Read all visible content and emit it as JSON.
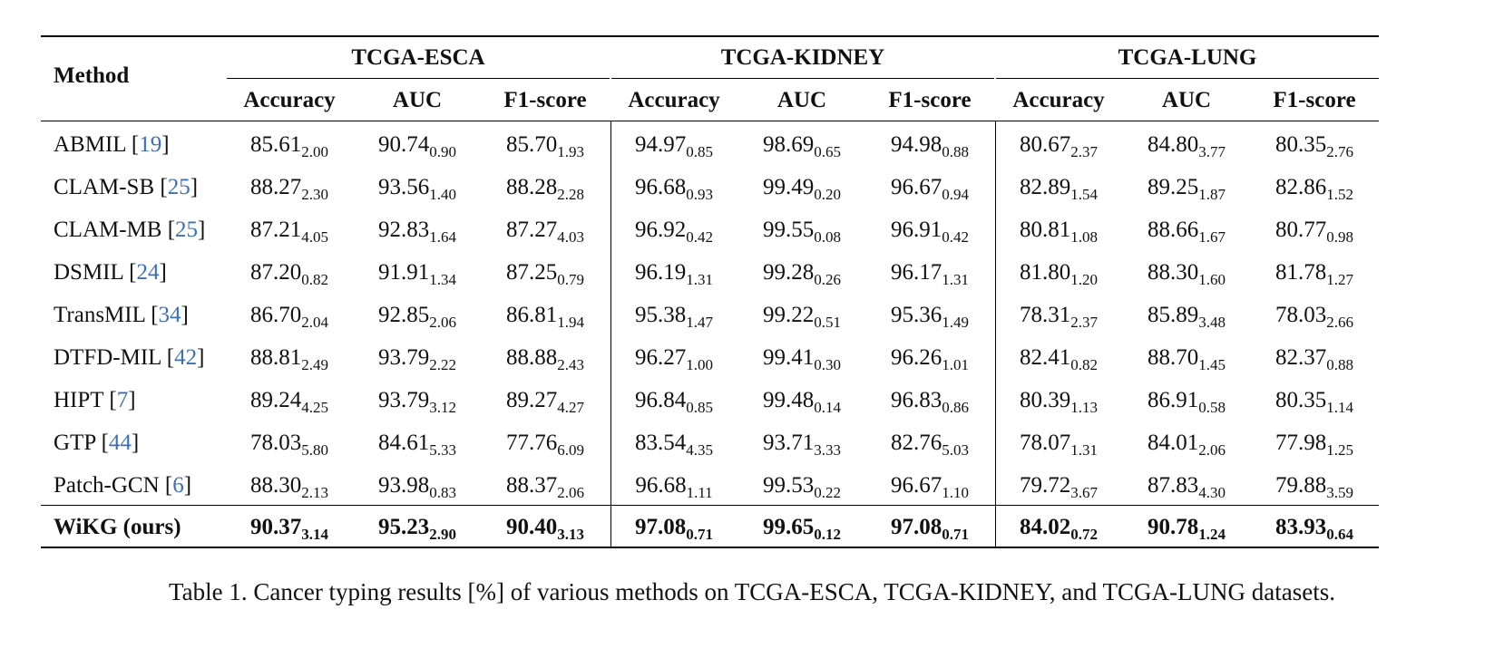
{
  "header": {
    "method_label": "Method",
    "groups": [
      "TCGA-ESCA",
      "TCGA-KIDNEY",
      "TCGA-LUNG"
    ],
    "metrics": [
      "Accuracy",
      "AUC",
      "F1-score",
      "Accuracy",
      "AUC",
      "F1-score",
      "Accuracy",
      "AUC",
      "F1-score"
    ]
  },
  "rows": [
    {
      "name": "ABMIL",
      "ref": "19",
      "cells": [
        [
          "85.61",
          "2.00"
        ],
        [
          "90.74",
          "0.90"
        ],
        [
          "85.70",
          "1.93"
        ],
        [
          "94.97",
          "0.85"
        ],
        [
          "98.69",
          "0.65"
        ],
        [
          "94.98",
          "0.88"
        ],
        [
          "80.67",
          "2.37"
        ],
        [
          "84.80",
          "3.77"
        ],
        [
          "80.35",
          "2.76"
        ]
      ]
    },
    {
      "name": "CLAM-SB",
      "ref": "25",
      "cells": [
        [
          "88.27",
          "2.30"
        ],
        [
          "93.56",
          "1.40"
        ],
        [
          "88.28",
          "2.28"
        ],
        [
          "96.68",
          "0.93"
        ],
        [
          "99.49",
          "0.20"
        ],
        [
          "96.67",
          "0.94"
        ],
        [
          "82.89",
          "1.54"
        ],
        [
          "89.25",
          "1.87"
        ],
        [
          "82.86",
          "1.52"
        ]
      ]
    },
    {
      "name": "CLAM-MB",
      "ref": "25",
      "cells": [
        [
          "87.21",
          "4.05"
        ],
        [
          "92.83",
          "1.64"
        ],
        [
          "87.27",
          "4.03"
        ],
        [
          "96.92",
          "0.42"
        ],
        [
          "99.55",
          "0.08"
        ],
        [
          "96.91",
          "0.42"
        ],
        [
          "80.81",
          "1.08"
        ],
        [
          "88.66",
          "1.67"
        ],
        [
          "80.77",
          "0.98"
        ]
      ]
    },
    {
      "name": "DSMIL",
      "ref": "24",
      "cells": [
        [
          "87.20",
          "0.82"
        ],
        [
          "91.91",
          "1.34"
        ],
        [
          "87.25",
          "0.79"
        ],
        [
          "96.19",
          "1.31"
        ],
        [
          "99.28",
          "0.26"
        ],
        [
          "96.17",
          "1.31"
        ],
        [
          "81.80",
          "1.20"
        ],
        [
          "88.30",
          "1.60"
        ],
        [
          "81.78",
          "1.27"
        ]
      ]
    },
    {
      "name": "TransMIL",
      "ref": "34",
      "cells": [
        [
          "86.70",
          "2.04"
        ],
        [
          "92.85",
          "2.06"
        ],
        [
          "86.81",
          "1.94"
        ],
        [
          "95.38",
          "1.47"
        ],
        [
          "99.22",
          "0.51"
        ],
        [
          "95.36",
          "1.49"
        ],
        [
          "78.31",
          "2.37"
        ],
        [
          "85.89",
          "3.48"
        ],
        [
          "78.03",
          "2.66"
        ]
      ]
    },
    {
      "name": "DTFD-MIL",
      "ref": "42",
      "cells": [
        [
          "88.81",
          "2.49"
        ],
        [
          "93.79",
          "2.22"
        ],
        [
          "88.88",
          "2.43"
        ],
        [
          "96.27",
          "1.00"
        ],
        [
          "99.41",
          "0.30"
        ],
        [
          "96.26",
          "1.01"
        ],
        [
          "82.41",
          "0.82"
        ],
        [
          "88.70",
          "1.45"
        ],
        [
          "82.37",
          "0.88"
        ]
      ]
    },
    {
      "name": "HIPT",
      "ref": "7",
      "cells": [
        [
          "89.24",
          "4.25"
        ],
        [
          "93.79",
          "3.12"
        ],
        [
          "89.27",
          "4.27"
        ],
        [
          "96.84",
          "0.85"
        ],
        [
          "99.48",
          "0.14"
        ],
        [
          "96.83",
          "0.86"
        ],
        [
          "80.39",
          "1.13"
        ],
        [
          "86.91",
          "0.58"
        ],
        [
          "80.35",
          "1.14"
        ]
      ]
    },
    {
      "name": "GTP",
      "ref": "44",
      "cells": [
        [
          "78.03",
          "5.80"
        ],
        [
          "84.61",
          "5.33"
        ],
        [
          "77.76",
          "6.09"
        ],
        [
          "83.54",
          "4.35"
        ],
        [
          "93.71",
          "3.33"
        ],
        [
          "82.76",
          "5.03"
        ],
        [
          "78.07",
          "1.31"
        ],
        [
          "84.01",
          "2.06"
        ],
        [
          "77.98",
          "1.25"
        ]
      ]
    },
    {
      "name": "Patch-GCN",
      "ref": "6",
      "cells": [
        [
          "88.30",
          "2.13"
        ],
        [
          "93.98",
          "0.83"
        ],
        [
          "88.37",
          "2.06"
        ],
        [
          "96.68",
          "1.11"
        ],
        [
          "99.53",
          "0.22"
        ],
        [
          "96.67",
          "1.10"
        ],
        [
          "79.72",
          "3.67"
        ],
        [
          "87.83",
          "4.30"
        ],
        [
          "79.88",
          "3.59"
        ]
      ]
    }
  ],
  "ours": {
    "name": "WiKG (ours)",
    "cells": [
      [
        "90.37",
        "3.14"
      ],
      [
        "95.23",
        "2.90"
      ],
      [
        "90.40",
        "3.13"
      ],
      [
        "97.08",
        "0.71"
      ],
      [
        "99.65",
        "0.12"
      ],
      [
        "97.08",
        "0.71"
      ],
      [
        "84.02",
        "0.72"
      ],
      [
        "90.78",
        "1.24"
      ],
      [
        "83.93",
        "0.64"
      ]
    ]
  },
  "caption": "Table 1. Cancer typing results [%] of various methods on TCGA-ESCA, TCGA-KIDNEY, and TCGA-LUNG datasets."
}
